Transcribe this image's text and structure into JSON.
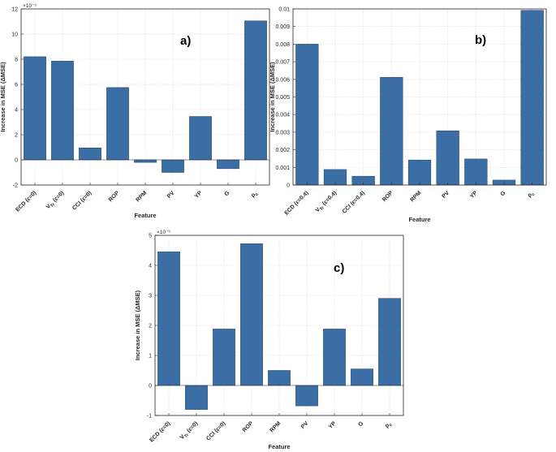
{
  "chart_data": [
    {
      "type": "bar",
      "panel_label": "a)",
      "title": "",
      "xlabel": "Feature",
      "ylabel": "Increase in MSE (ΔMSE)",
      "exponent_label": "×10⁻³",
      "bar_color": "#3a6ea5",
      "categories": [
        "ECD (ε=0)",
        "V_Tr (ε=0)",
        "CCI (ε=0)",
        "ROP",
        "RPM",
        "PV",
        "YP",
        "G",
        "ρ_c"
      ],
      "values": [
        8.2,
        7.85,
        0.95,
        5.75,
        -0.2,
        -1.0,
        3.45,
        -0.7,
        11.05
      ],
      "ylim": [
        -2,
        12
      ],
      "yticks": [
        -2,
        0,
        2,
        4,
        6,
        8,
        10,
        12
      ],
      "ytick_labels": [
        "-2",
        "0",
        "2",
        "4",
        "6",
        "8",
        "10",
        "12"
      ],
      "grid": true
    },
    {
      "type": "bar",
      "panel_label": "b)",
      "title": "",
      "xlabel": "Feature",
      "ylabel": "Increase in MSE (ΔMSE)",
      "bar_color": "#3a6ea5",
      "categories": [
        "ECD (ε=0.4)",
        "V_Tr (ε=0.4)",
        "CCI (ε=0.4)",
        "ROP",
        "RPM",
        "PV",
        "YP",
        "G",
        "ρ_c"
      ],
      "values": [
        0.008,
        0.00088,
        0.0005,
        0.00612,
        0.00142,
        0.00308,
        0.00148,
        0.00028,
        0.00992
      ],
      "ylim": [
        0,
        0.01
      ],
      "yticks": [
        0,
        0.001,
        0.002,
        0.003,
        0.004,
        0.005,
        0.006,
        0.007,
        0.008,
        0.009,
        0.01
      ],
      "ytick_labels": [
        "0",
        "0.001",
        "0.002",
        "0.003",
        "0.004",
        "0.005",
        "0.006",
        "0.007",
        "0.008",
        "0.009",
        "0.01"
      ],
      "grid": true
    },
    {
      "type": "bar",
      "panel_label": "c)",
      "title": "",
      "xlabel": "Feature",
      "ylabel": "Increase in MSE (ΔMSE)",
      "exponent_label": "×10⁻³",
      "bar_color": "#3a6ea5",
      "categories": [
        "ECD (ε=0)",
        "V_Tr (ε=0)",
        "CCI (ε=0)",
        "ROP",
        "RPM",
        "PV",
        "YP",
        "G",
        "ρ_c"
      ],
      "values": [
        4.45,
        -0.8,
        1.88,
        4.72,
        0.5,
        -0.68,
        1.88,
        0.55,
        2.9
      ],
      "ylim": [
        -1,
        5
      ],
      "yticks": [
        -1,
        0,
        1,
        2,
        3,
        4,
        5
      ],
      "ytick_labels": [
        "-1",
        "0",
        "1",
        "2",
        "3",
        "4",
        "5"
      ],
      "grid": true
    }
  ]
}
